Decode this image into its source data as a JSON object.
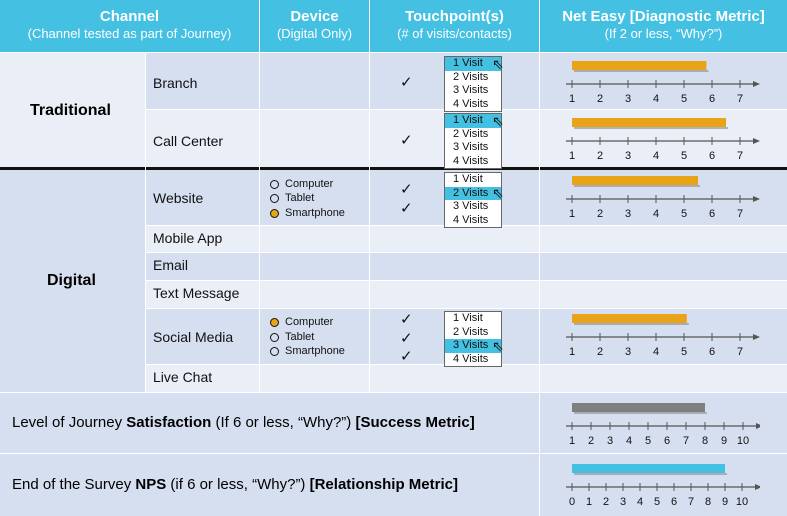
{
  "headers": {
    "channel": {
      "title": "Channel",
      "sub": "(Channel tested as part of Journey)"
    },
    "device": {
      "title": "Device",
      "sub": "(Digital Only)"
    },
    "touchpoint": {
      "title": "Touchpoint(s)",
      "sub": "(# of visits/contacts)"
    },
    "neteasy": {
      "title": "Net Easy [Diagnostic Metric]",
      "sub": "(If 2 or less, “Why?”)"
    }
  },
  "groups": {
    "traditional": "Traditional",
    "digital": "Digital"
  },
  "rows": {
    "branch": "Branch",
    "callcenter": "Call Center",
    "website": "Website",
    "mobileapp": "Mobile App",
    "email": "Email",
    "textmessage": "Text Message",
    "socialmedia": "Social Media",
    "livechat": "Live Chat"
  },
  "devices": [
    "Computer",
    "Tablet",
    "Smartphone"
  ],
  "device_selected": {
    "website": "Smartphone",
    "socialmedia": "Computer"
  },
  "check_glyph": "✓",
  "visit_options": [
    "1 Visit",
    "2 Visits",
    "3 Visits",
    "4 Visits"
  ],
  "visit_selected": {
    "branch": "1 Visit",
    "callcenter": "1 Visit",
    "website": "2 Visits",
    "socialmedia": "3 Visits"
  },
  "scale_1_7": [
    "1",
    "2",
    "3",
    "4",
    "5",
    "6",
    "7"
  ],
  "scale_1_10": [
    "1",
    "2",
    "3",
    "4",
    "5",
    "6",
    "7",
    "8",
    "9",
    "10"
  ],
  "scale_0_10": [
    "0",
    "1",
    "2",
    "3",
    "4",
    "5",
    "6",
    "7",
    "8",
    "9",
    "10"
  ],
  "bar_values": {
    "branch": 5.8,
    "callcenter": 6.5,
    "website": 5.5,
    "socialmedia": 5.1,
    "satisfaction": 8.0,
    "nps": 9.0
  },
  "satisfaction": {
    "pre": "Level of Journey ",
    "bold1": "Satisfaction",
    "mid": " (If 6 or less, “Why?”) ",
    "bold2": "[Success Metric]"
  },
  "nps": {
    "pre": "End of the Survey ",
    "bold1": "NPS",
    "mid": " (if 6 or less, “Why?”) ",
    "bold2": "[Relationship Metric]"
  },
  "colors": {
    "header": "#43c0e2",
    "bar_orange": "#e8a317",
    "bar_gray": "#7f7f7f",
    "bar_cyan": "#43c0e2",
    "row_dark": "#d6dff0",
    "row_light": "#e9eef7"
  }
}
